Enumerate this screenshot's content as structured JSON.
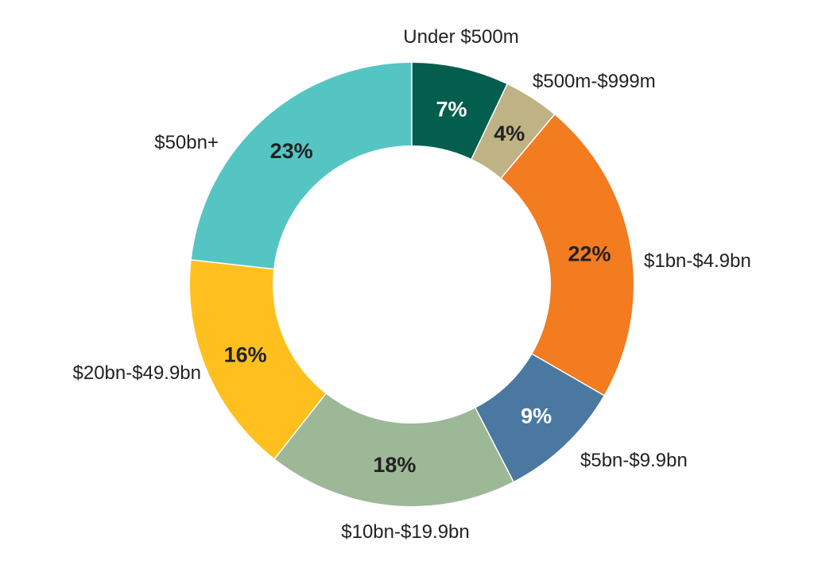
{
  "chart_data": {
    "type": "pie",
    "subtype": "donut",
    "title": "",
    "categories": [
      "Under $500m",
      "$500m-$999m",
      "$1bn-$4.9bn",
      "$5bn-$9.9bn",
      "$10bn-$19.9bn",
      "$20bn-$49.9bn",
      "$50bn+"
    ],
    "values": [
      7,
      4,
      22,
      9,
      18,
      16,
      23
    ],
    "value_labels": [
      "7%",
      "4%",
      "22%",
      "9%",
      "18%",
      "16%",
      "23%"
    ],
    "colors": [
      "#035E4E",
      "#BFB285",
      "#F37B20",
      "#4A78A0",
      "#9DB897",
      "#FFC01F",
      "#55C5C3"
    ],
    "label_colors": [
      "#ffffff",
      "#222222",
      "#222222",
      "#ffffff",
      "#222222",
      "#222222",
      "#222222"
    ],
    "start": "top",
    "direction": "clockwise",
    "legend": "none"
  }
}
